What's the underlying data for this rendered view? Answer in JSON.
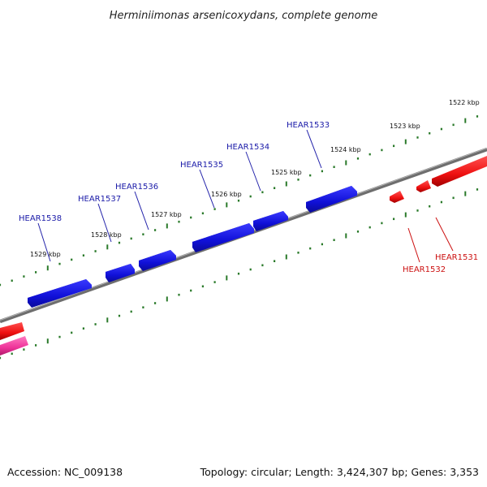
{
  "title": "Herminiimonas arsenicoxydans, complete genome",
  "accession": "Accession: NC_009138",
  "summary": "Topology: circular; Length: 3,424,307 bp; Genes: 3,353",
  "ticks": [
    {
      "label": "1522 kbp"
    },
    {
      "label": "1523 kbp"
    },
    {
      "label": "1524 kbp"
    },
    {
      "label": "1525 kbp"
    },
    {
      "label": "1526 kbp"
    },
    {
      "label": "1527 kbp"
    },
    {
      "label": "1528 kbp"
    },
    {
      "label": "1529 kbp"
    }
  ],
  "genes_forward": [
    {
      "name": "HEAR1533"
    },
    {
      "name": "HEAR1534"
    },
    {
      "name": "HEAR1535"
    },
    {
      "name": "HEAR1536"
    },
    {
      "name": "HEAR1537"
    },
    {
      "name": "HEAR1538"
    }
  ],
  "genes_reverse": [
    {
      "name": "HEAR1532"
    },
    {
      "name": "HEAR1531"
    }
  ],
  "colors": {
    "forward_gene": "#1111dd",
    "reverse_gene": "#ee1111",
    "rna_gene": "#ee3399",
    "backbone": "#777777",
    "ticks": "#2a7a2a",
    "forward_label": "#1a1aa8",
    "reverse_label": "#cc1111"
  }
}
